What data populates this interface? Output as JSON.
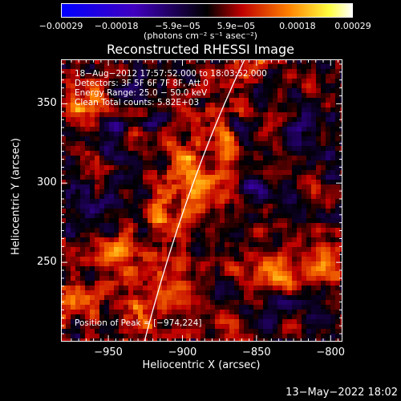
{
  "chart_data": {
    "type": "heatmap",
    "title": "Reconstructed RHESSI Image",
    "xlabel": "Heliocentric X (arcsec)",
    "ylabel": "Heliocentric Y (arcsec)",
    "xlim": [
      -982,
      -792
    ],
    "ylim": [
      200,
      378
    ],
    "x_ticks": [
      -950,
      -900,
      -850,
      -800
    ],
    "x_tick_labels": [
      "−950",
      "−900",
      "−850",
      "−800"
    ],
    "y_ticks": [
      250,
      300,
      350
    ],
    "y_tick_labels": [
      "250",
      "300",
      "350"
    ],
    "colorbar": {
      "range": [
        -0.00029,
        0.00029
      ],
      "tick_labels": [
        "−0.00029",
        "−0.00018",
        "−5.9e−05",
        "5.9e−05",
        "0.00018",
        "0.00029"
      ],
      "units_label": "(photons cm⁻² s⁻¹ asec⁻²)",
      "colors": [
        "#0000ff",
        "#4000c0",
        "#000000",
        "#c00000",
        "#ff8000",
        "#ffff40",
        "#ffffff"
      ]
    },
    "annotations": [
      "18−Aug−2012 17:57:52.000 to 18:03:52.000",
      "Detectors: 3F 5F 6F 7F 8F, Att 0",
      "Energy Range: 25.0 − 50.0 keV",
      "Clean     Total counts: 5.82E+03"
    ],
    "peak_label": "Position of Peak = [−974,224]",
    "limb_color": "#ffffff",
    "hotspots": [
      {
        "x": -974,
        "y": 224,
        "value": 1.0
      },
      {
        "x": -945,
        "y": 258,
        "value": 0.75
      },
      {
        "x": -965,
        "y": 350,
        "value": 0.8
      },
      {
        "x": -890,
        "y": 298,
        "value": 0.8
      },
      {
        "x": -870,
        "y": 316,
        "value": 0.85
      },
      {
        "x": -835,
        "y": 244,
        "value": 0.95
      },
      {
        "x": -806,
        "y": 250,
        "value": 0.8
      },
      {
        "x": -905,
        "y": 230,
        "value": 0.6
      },
      {
        "x": -860,
        "y": 210,
        "value": 0.55
      }
    ]
  },
  "footer": "13−May−2022 18:02"
}
